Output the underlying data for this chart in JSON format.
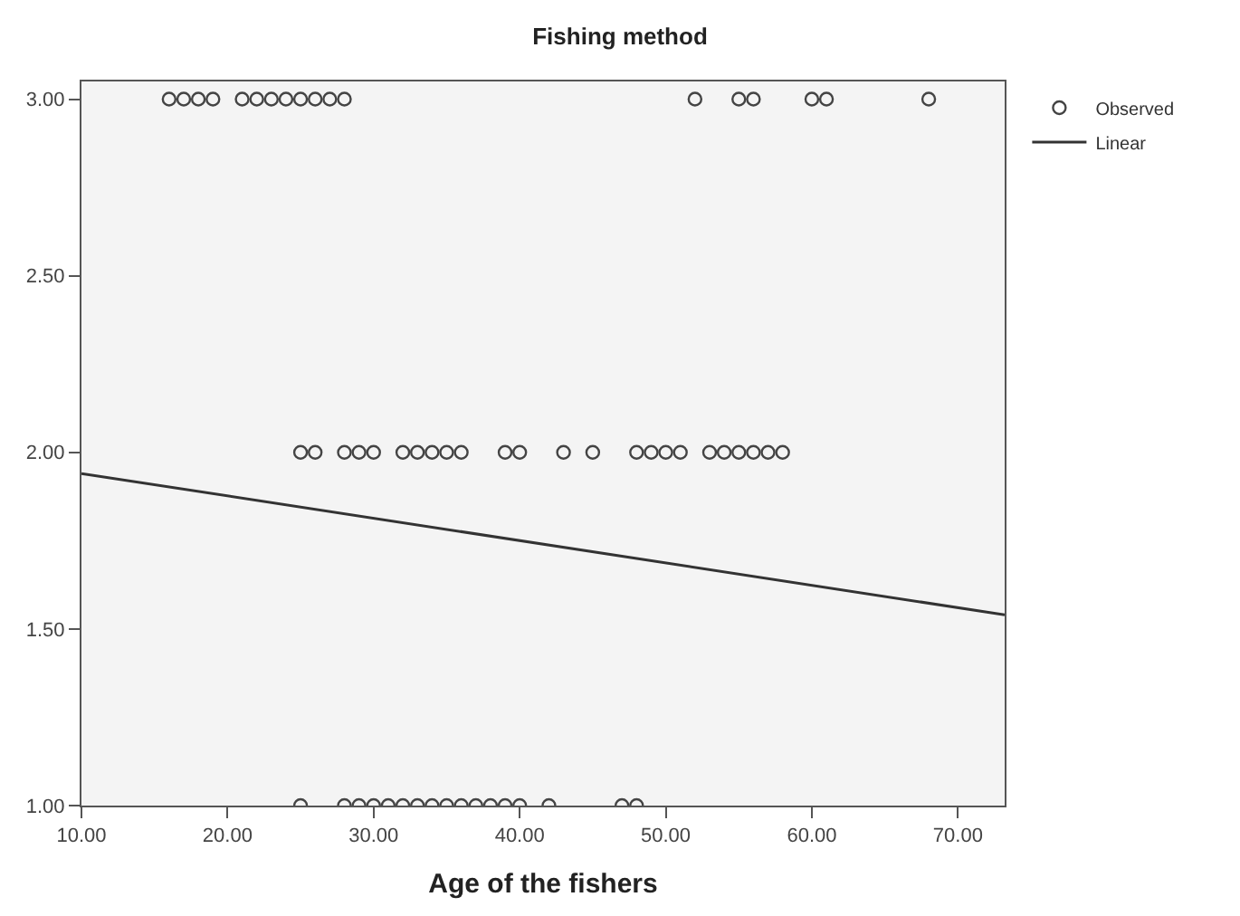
{
  "chart_data": {
    "type": "scatter",
    "title": "Fishing method",
    "xlabel": "Age of the fishers",
    "xlim": [
      10,
      73.2
    ],
    "ylim": [
      1,
      3.05
    ],
    "xticks": [
      {
        "value": 10,
        "label": "10.00"
      },
      {
        "value": 20,
        "label": "20.00"
      },
      {
        "value": 30,
        "label": "30.00"
      },
      {
        "value": 40,
        "label": "40.00"
      },
      {
        "value": 50,
        "label": "50.00"
      },
      {
        "value": 60,
        "label": "60.00"
      },
      {
        "value": 70,
        "label": "70.00"
      }
    ],
    "yticks": [
      {
        "value": 1,
        "label": "1.00"
      },
      {
        "value": 1.5,
        "label": "1.50"
      },
      {
        "value": 2,
        "label": "2.00"
      },
      {
        "value": 2.5,
        "label": "2.50"
      },
      {
        "value": 3,
        "label": "3.00"
      }
    ],
    "grid": false,
    "legend": "top right",
    "series": [
      {
        "name": "Observed",
        "marker": "circle",
        "color": "#444444",
        "x": [
          16,
          17,
          18,
          19,
          21,
          22,
          23,
          24,
          25,
          26,
          27,
          28,
          52,
          55,
          56,
          60,
          61,
          68,
          25,
          26,
          28,
          29,
          30,
          32,
          33,
          34,
          35,
          36,
          39,
          40,
          43,
          45,
          48,
          49,
          50,
          51,
          53,
          54,
          55,
          56,
          57,
          58,
          25,
          28,
          29,
          30,
          31,
          32,
          33,
          34,
          35,
          36,
          37,
          38,
          39,
          40,
          42,
          47,
          48
        ],
        "values": [
          3,
          3,
          3,
          3,
          3,
          3,
          3,
          3,
          3,
          3,
          3,
          3,
          3,
          3,
          3,
          3,
          3,
          3,
          2,
          2,
          2,
          2,
          2,
          2,
          2,
          2,
          2,
          2,
          2,
          2,
          2,
          2,
          2,
          2,
          2,
          2,
          2,
          2,
          2,
          2,
          2,
          2,
          1,
          1,
          1,
          1,
          1,
          1,
          1,
          1,
          1,
          1,
          1,
          1,
          1,
          1,
          1,
          1,
          1
        ]
      },
      {
        "name": "Linear",
        "type": "line",
        "marker": "none",
        "color": "#333333",
        "line_style": "solid",
        "x": [
          10,
          73.2
        ],
        "values": [
          1.94,
          1.54
        ]
      }
    ]
  }
}
